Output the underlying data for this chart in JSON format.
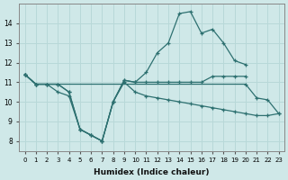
{
  "xlabel": "Humidex (Indice chaleur)",
  "background_color": "#cfe8e8",
  "grid_color": "#b8d8d8",
  "line_color": "#2d7070",
  "series": [
    {
      "x": [
        0,
        1,
        2,
        3,
        4,
        5,
        6,
        7,
        8,
        9,
        10,
        11,
        12,
        13,
        14,
        15,
        16,
        17,
        18,
        19,
        20
      ],
      "y": [
        11.4,
        10.9,
        10.9,
        10.9,
        10.5,
        8.6,
        8.3,
        8.0,
        10.0,
        11.1,
        11.0,
        11.0,
        11.0,
        11.0,
        11.0,
        11.0,
        11.0,
        11.3,
        11.3,
        11.3,
        11.3
      ]
    },
    {
      "x": [
        0,
        1,
        2,
        3,
        4,
        5,
        6,
        7,
        8,
        9,
        10,
        11,
        12,
        13,
        14,
        15,
        16,
        17,
        18,
        19,
        20,
        21,
        22,
        23
      ],
      "y": [
        11.4,
        10.9,
        10.9,
        10.5,
        10.3,
        8.6,
        8.3,
        8.0,
        10.0,
        11.0,
        10.5,
        10.3,
        10.2,
        10.1,
        10.0,
        9.9,
        9.8,
        9.7,
        9.6,
        9.5,
        9.4,
        9.3,
        9.3,
        9.4
      ]
    },
    {
      "x": [
        0,
        1,
        2,
        3,
        4,
        5,
        6,
        7,
        8,
        9,
        10,
        11,
        12,
        13,
        14,
        15,
        16,
        17,
        18,
        19,
        20
      ],
      "y": [
        11.4,
        10.9,
        10.9,
        10.9,
        10.5,
        8.6,
        8.3,
        8.0,
        10.0,
        11.1,
        11.0,
        11.5,
        12.5,
        13.0,
        14.5,
        14.6,
        13.5,
        13.7,
        13.0,
        12.1,
        11.9
      ]
    },
    {
      "x": [
        0,
        1,
        20,
        21,
        22,
        23
      ],
      "y": [
        11.4,
        10.9,
        10.9,
        10.2,
        10.1,
        9.4
      ]
    }
  ],
  "xlim": [
    -0.5,
    23.5
  ],
  "ylim": [
    7.5,
    15.0
  ],
  "xticks": [
    0,
    1,
    2,
    3,
    4,
    5,
    6,
    7,
    8,
    9,
    10,
    11,
    12,
    13,
    14,
    15,
    16,
    17,
    18,
    19,
    20,
    21,
    22,
    23
  ],
  "yticks": [
    8,
    9,
    10,
    11,
    12,
    13,
    14
  ]
}
